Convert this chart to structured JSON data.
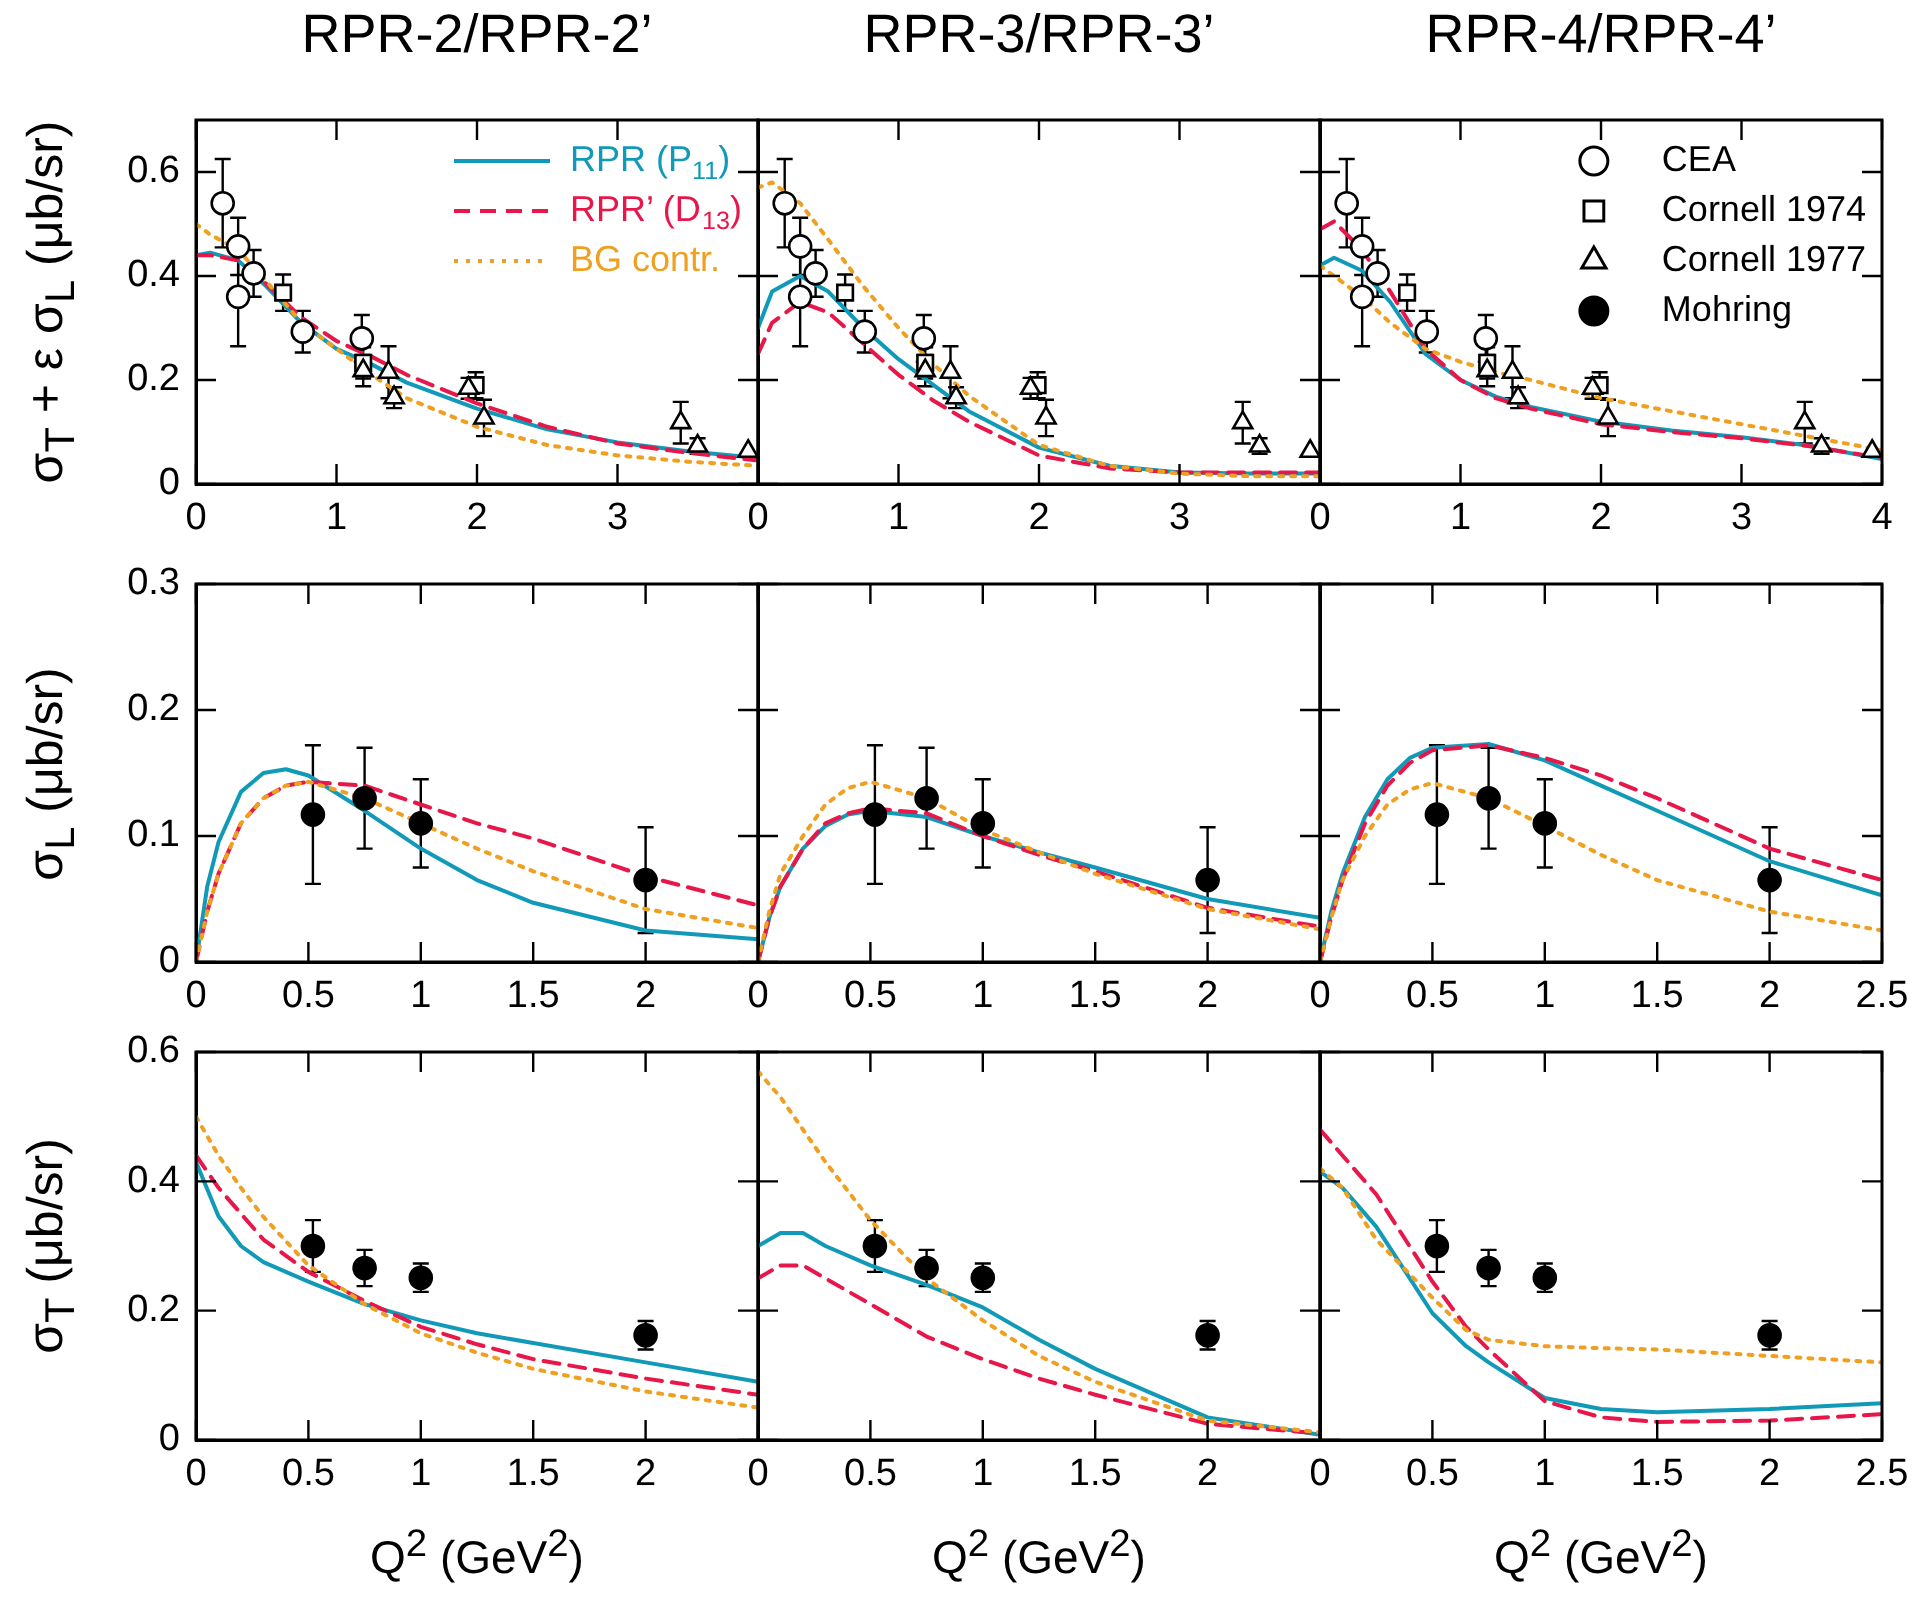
{
  "chart_data": [
    {
      "type": "line",
      "title": "RPR-2/RPR-2’",
      "ylabel": "σ$_{T}$ + ε σ$_{L}$ (μb/sr)",
      "xlim": [
        0,
        4
      ],
      "ylim": [
        0,
        0.7
      ],
      "xticks": [
        0,
        1,
        2,
        3
      ],
      "yticks": [
        0,
        0.2,
        0.4,
        0.6
      ],
      "legend": "top right",
      "series": [
        {
          "type": "line",
          "name": "RPR (P$_{11}$)",
          "color": "#1199b8",
          "line_style": "solid",
          "marker": "none",
          "x": [
            0,
            0.1,
            0.3,
            0.5,
            0.75,
            1,
            1.25,
            1.5,
            2,
            2.5,
            3,
            3.5,
            4
          ],
          "values": [
            0.44,
            0.445,
            0.43,
            0.38,
            0.31,
            0.26,
            0.23,
            0.195,
            0.145,
            0.105,
            0.08,
            0.063,
            0.05
          ]
        },
        {
          "type": "line",
          "name": "RPR’ (D$_{13}$)",
          "color": "#e8174a",
          "line_style": "dashed",
          "marker": "none",
          "x": [
            0,
            0.1,
            0.3,
            0.5,
            0.75,
            1,
            1.25,
            1.5,
            2,
            2.5,
            3,
            3.5,
            4
          ],
          "values": [
            0.44,
            0.44,
            0.43,
            0.385,
            0.32,
            0.275,
            0.245,
            0.21,
            0.155,
            0.11,
            0.078,
            0.06,
            0.045
          ]
        },
        {
          "type": "line",
          "name": "BG contr.",
          "color": "#f0a020",
          "line_style": "dotted",
          "marker": "none",
          "x": [
            0,
            0.1,
            0.3,
            0.5,
            0.75,
            1,
            1.25,
            1.5,
            2,
            2.5,
            3,
            3.5,
            4
          ],
          "values": [
            0.5,
            0.48,
            0.45,
            0.39,
            0.31,
            0.26,
            0.21,
            0.165,
            0.11,
            0.075,
            0.055,
            0.043,
            0.035
          ]
        },
        {
          "type": "scatter",
          "color": "#ffffff",
          "marker": "circle",
          "x": [
            0.19,
            0.3,
            0.3,
            0.41,
            0.76,
            1.18
          ],
          "values": [
            0.54,
            0.457,
            0.36,
            0.405,
            0.293,
            0.28
          ],
          "errors": [
            0.085,
            0.055,
            0.095,
            0.045,
            0.04,
            0.045
          ]
        },
        {
          "type": "scatter",
          "color": "#ffffff",
          "marker": "square",
          "x": [
            0.62,
            1.19,
            1.99
          ],
          "values": [
            0.368,
            0.233,
            0.19
          ],
          "errors": [
            0.035,
            0.03,
            0.025
          ]
        },
        {
          "type": "scatter",
          "color": "#ffffff",
          "marker": "triangle",
          "x": [
            1.19,
            1.37,
            1.41,
            1.94,
            2.05,
            3.45,
            3.57,
            3.93
          ],
          "values": [
            0.218,
            0.215,
            0.166,
            0.184,
            0.127,
            0.118,
            0.073,
            0.063
          ],
          "errors": [
            0.03,
            0.05,
            0.02,
            0.02,
            0.035,
            0.04,
            0.015,
            null
          ]
        }
      ]
    },
    {
      "type": "line",
      "title": "RPR-3/RPR-3’",
      "xlim": [
        0,
        4
      ],
      "ylim": [
        0,
        0.7
      ],
      "xticks": [
        0,
        1,
        2,
        3
      ],
      "yticks": [
        0,
        0.2,
        0.4,
        0.6
      ],
      "tick_labels": "x",
      "series": [
        {
          "type": "line",
          "color": "#1199b8",
          "line_style": "solid",
          "marker": "none",
          "x": [
            0,
            0.1,
            0.3,
            0.5,
            0.75,
            1,
            1.25,
            1.5,
            2,
            2.5,
            3,
            3.5,
            4
          ],
          "values": [
            0.3,
            0.37,
            0.4,
            0.37,
            0.3,
            0.24,
            0.19,
            0.14,
            0.07,
            0.035,
            0.022,
            0.02,
            0.02
          ]
        },
        {
          "type": "line",
          "color": "#e8174a",
          "line_style": "dashed",
          "marker": "none",
          "x": [
            0,
            0.1,
            0.3,
            0.5,
            0.75,
            1,
            1.25,
            1.5,
            2,
            2.5,
            3,
            3.5,
            4
          ],
          "values": [
            0.25,
            0.31,
            0.35,
            0.33,
            0.27,
            0.21,
            0.16,
            0.12,
            0.055,
            0.03,
            0.022,
            0.022,
            0.022
          ]
        },
        {
          "type": "line",
          "color": "#f0a020",
          "line_style": "dotted",
          "marker": "none",
          "x": [
            0,
            0.1,
            0.3,
            0.5,
            0.75,
            1,
            1.25,
            1.5,
            2,
            2.5,
            3,
            3.5,
            4
          ],
          "values": [
            0.57,
            0.58,
            0.54,
            0.47,
            0.38,
            0.3,
            0.23,
            0.17,
            0.075,
            0.035,
            0.02,
            0.015,
            0.015
          ]
        },
        {
          "type": "scatter",
          "color": "#ffffff",
          "marker": "circle",
          "x": [
            0.19,
            0.3,
            0.3,
            0.41,
            0.76,
            1.18
          ],
          "values": [
            0.54,
            0.457,
            0.36,
            0.405,
            0.293,
            0.28
          ],
          "errors": [
            0.085,
            0.055,
            0.095,
            0.045,
            0.04,
            0.045
          ]
        },
        {
          "type": "scatter",
          "color": "#ffffff",
          "marker": "square",
          "x": [
            0.62,
            1.19,
            1.99
          ],
          "values": [
            0.368,
            0.233,
            0.19
          ],
          "errors": [
            0.035,
            0.03,
            0.025
          ]
        },
        {
          "type": "scatter",
          "color": "#ffffff",
          "marker": "triangle",
          "x": [
            1.19,
            1.37,
            1.41,
            1.94,
            2.05,
            3.45,
            3.57,
            3.93
          ],
          "values": [
            0.218,
            0.215,
            0.166,
            0.184,
            0.127,
            0.118,
            0.073,
            0.063
          ],
          "errors": [
            0.03,
            0.05,
            0.02,
            0.02,
            0.035,
            0.04,
            0.015,
            null
          ]
        }
      ]
    },
    {
      "type": "line",
      "title": "RPR-4/RPR-4’",
      "xlim": [
        0,
        4
      ],
      "ylim": [
        0,
        0.7
      ],
      "xticks": [
        0,
        1,
        2,
        3,
        4
      ],
      "yticks": [
        0,
        0.2,
        0.4,
        0.6
      ],
      "tick_labels": "x",
      "legend": "top right",
      "series": [
        {
          "type": "line",
          "color": "#1199b8",
          "line_style": "solid",
          "marker": "none",
          "x": [
            0,
            0.1,
            0.3,
            0.5,
            0.75,
            1,
            1.25,
            1.5,
            2,
            2.5,
            3,
            3.5,
            4
          ],
          "values": [
            0.42,
            0.435,
            0.41,
            0.35,
            0.25,
            0.2,
            0.168,
            0.148,
            0.12,
            0.103,
            0.09,
            0.073,
            0.048
          ]
        },
        {
          "type": "line",
          "color": "#e8174a",
          "line_style": "dashed",
          "marker": "none",
          "x": [
            0,
            0.1,
            0.3,
            0.5,
            0.75,
            1,
            1.25,
            1.5,
            2,
            2.5,
            3,
            3.5,
            4
          ],
          "values": [
            0.49,
            0.505,
            0.45,
            0.37,
            0.26,
            0.2,
            0.165,
            0.145,
            0.115,
            0.1,
            0.088,
            0.072,
            0.05
          ]
        },
        {
          "type": "line",
          "color": "#f0a020",
          "line_style": "dotted",
          "marker": "none",
          "x": [
            0,
            0.1,
            0.3,
            0.5,
            0.75,
            1,
            1.25,
            1.5,
            2,
            2.5,
            3,
            3.5,
            4
          ],
          "values": [
            0.42,
            0.4,
            0.36,
            0.31,
            0.26,
            0.235,
            0.215,
            0.2,
            0.165,
            0.14,
            0.115,
            0.09,
            0.065
          ]
        },
        {
          "type": "scatter",
          "name": "CEA",
          "color": "#ffffff",
          "marker": "circle",
          "x": [
            0.19,
            0.3,
            0.3,
            0.41,
            0.76,
            1.18
          ],
          "values": [
            0.54,
            0.457,
            0.36,
            0.405,
            0.293,
            0.28
          ],
          "errors": [
            0.085,
            0.055,
            0.095,
            0.045,
            0.04,
            0.045
          ]
        },
        {
          "type": "scatter",
          "name": "Cornell 1974",
          "color": "#ffffff",
          "marker": "square",
          "x": [
            0.62,
            1.19,
            1.99
          ],
          "values": [
            0.368,
            0.233,
            0.19
          ],
          "errors": [
            0.035,
            0.03,
            0.025
          ]
        },
        {
          "type": "scatter",
          "name": "Cornell 1977",
          "color": "#ffffff",
          "marker": "triangle",
          "x": [
            1.19,
            1.37,
            1.41,
            1.94,
            2.05,
            3.45,
            3.57,
            3.93
          ],
          "values": [
            0.218,
            0.215,
            0.166,
            0.184,
            0.127,
            0.118,
            0.073,
            0.063
          ],
          "errors": [
            0.03,
            0.05,
            0.02,
            0.02,
            0.035,
            0.04,
            0.015,
            null
          ]
        },
        {
          "type": "scatter",
          "name": "Mohring",
          "color": "#000000",
          "marker": "circle"
        }
      ]
    },
    {
      "type": "line",
      "ylabel": "σ$_{L}$ (μb/sr)",
      "xlim": [
        0,
        2.5
      ],
      "ylim": [
        0,
        0.3
      ],
      "xticks": [
        0,
        0.5,
        1,
        1.5,
        2
      ],
      "yticks": [
        0,
        0.1,
        0.2,
        0.3
      ],
      "series": [
        {
          "type": "line",
          "color": "#1199b8",
          "line_style": "solid",
          "marker": "none",
          "x": [
            0,
            0.05,
            0.1,
            0.2,
            0.3,
            0.4,
            0.5,
            0.75,
            1,
            1.25,
            1.5,
            2,
            2.5
          ],
          "values": [
            0,
            0.06,
            0.095,
            0.135,
            0.15,
            0.153,
            0.148,
            0.12,
            0.09,
            0.065,
            0.047,
            0.025,
            0.018
          ]
        },
        {
          "type": "line",
          "color": "#e8174a",
          "line_style": "dashed",
          "marker": "none",
          "x": [
            0,
            0.05,
            0.1,
            0.2,
            0.3,
            0.4,
            0.5,
            0.75,
            1,
            1.25,
            1.5,
            2,
            2.5
          ],
          "values": [
            0,
            0.04,
            0.07,
            0.11,
            0.13,
            0.14,
            0.143,
            0.14,
            0.125,
            0.11,
            0.098,
            0.068,
            0.045
          ]
        },
        {
          "type": "line",
          "color": "#f0a020",
          "line_style": "dotted",
          "marker": "none",
          "x": [
            0,
            0.05,
            0.1,
            0.2,
            0.3,
            0.4,
            0.5,
            0.75,
            1,
            1.25,
            1.5,
            2,
            2.5
          ],
          "values": [
            0,
            0.04,
            0.07,
            0.11,
            0.13,
            0.14,
            0.143,
            0.13,
            0.11,
            0.09,
            0.072,
            0.042,
            0.027
          ]
        },
        {
          "type": "scatter",
          "color": "#000000",
          "marker": "circle",
          "x": [
            0.52,
            0.75,
            1,
            2
          ],
          "values": [
            0.117,
            0.13,
            0.11,
            0.065
          ],
          "errors": [
            0.055,
            0.04,
            0.035,
            0.042
          ]
        }
      ]
    },
    {
      "type": "line",
      "xlim": [
        0,
        2.5
      ],
      "ylim": [
        0,
        0.3
      ],
      "xticks": [
        0,
        0.5,
        1,
        1.5,
        2
      ],
      "yticks": [
        0,
        0.1,
        0.2,
        0.3
      ],
      "tick_labels": "x",
      "series": [
        {
          "type": "line",
          "color": "#1199b8",
          "line_style": "solid",
          "marker": "none",
          "x": [
            0,
            0.05,
            0.1,
            0.2,
            0.3,
            0.4,
            0.5,
            0.75,
            1,
            1.25,
            1.5,
            2,
            2.5
          ],
          "values": [
            0,
            0.035,
            0.06,
            0.09,
            0.108,
            0.117,
            0.12,
            0.115,
            0.1,
            0.087,
            0.075,
            0.05,
            0.035
          ]
        },
        {
          "type": "line",
          "color": "#e8174a",
          "line_style": "dashed",
          "marker": "none",
          "x": [
            0,
            0.05,
            0.1,
            0.2,
            0.3,
            0.4,
            0.5,
            0.75,
            1,
            1.25,
            1.5,
            2,
            2.5
          ],
          "values": [
            0,
            0.035,
            0.06,
            0.09,
            0.11,
            0.118,
            0.122,
            0.118,
            0.1,
            0.085,
            0.072,
            0.043,
            0.028
          ]
        },
        {
          "type": "line",
          "color": "#f0a020",
          "line_style": "dotted",
          "marker": "none",
          "x": [
            0,
            0.05,
            0.1,
            0.2,
            0.3,
            0.4,
            0.5,
            0.75,
            1,
            1.25,
            1.5,
            2,
            2.5
          ],
          "values": [
            0,
            0.04,
            0.07,
            0.1,
            0.125,
            0.138,
            0.143,
            0.13,
            0.105,
            0.087,
            0.07,
            0.042,
            0.026
          ]
        },
        {
          "type": "scatter",
          "color": "#000000",
          "marker": "circle",
          "x": [
            0.52,
            0.75,
            1,
            2
          ],
          "values": [
            0.117,
            0.13,
            0.11,
            0.065
          ],
          "errors": [
            0.055,
            0.04,
            0.035,
            0.042
          ]
        }
      ]
    },
    {
      "type": "line",
      "xlim": [
        0,
        2.5
      ],
      "ylim": [
        0,
        0.3
      ],
      "xticks": [
        0,
        0.5,
        1,
        1.5,
        2,
        2.5
      ],
      "yticks": [
        0,
        0.1,
        0.2,
        0.3
      ],
      "tick_labels": "x",
      "series": [
        {
          "type": "line",
          "color": "#1199b8",
          "line_style": "solid",
          "marker": "none",
          "x": [
            0,
            0.05,
            0.1,
            0.2,
            0.3,
            0.4,
            0.5,
            0.75,
            1,
            1.25,
            1.5,
            2,
            2.5
          ],
          "values": [
            0,
            0.04,
            0.07,
            0.115,
            0.145,
            0.162,
            0.17,
            0.173,
            0.16,
            0.14,
            0.12,
            0.08,
            0.053
          ]
        },
        {
          "type": "line",
          "color": "#e8174a",
          "line_style": "dashed",
          "marker": "none",
          "x": [
            0,
            0.05,
            0.1,
            0.2,
            0.3,
            0.4,
            0.5,
            0.75,
            1,
            1.25,
            1.5,
            2,
            2.5
          ],
          "values": [
            0,
            0.035,
            0.065,
            0.11,
            0.14,
            0.158,
            0.168,
            0.172,
            0.162,
            0.148,
            0.13,
            0.09,
            0.065
          ]
        },
        {
          "type": "line",
          "color": "#f0a020",
          "line_style": "dotted",
          "marker": "none",
          "x": [
            0,
            0.05,
            0.1,
            0.2,
            0.3,
            0.4,
            0.5,
            0.75,
            1,
            1.25,
            1.5,
            2,
            2.5
          ],
          "values": [
            0,
            0.035,
            0.065,
            0.1,
            0.125,
            0.137,
            0.142,
            0.13,
            0.108,
            0.085,
            0.065,
            0.04,
            0.025
          ]
        },
        {
          "type": "scatter",
          "color": "#000000",
          "marker": "circle",
          "x": [
            0.52,
            0.75,
            1,
            2
          ],
          "values": [
            0.117,
            0.13,
            0.11,
            0.065
          ],
          "errors": [
            0.055,
            0.04,
            0.035,
            0.042
          ]
        }
      ]
    },
    {
      "type": "line",
      "xlabel": "Q$^{2}$ (GeV$^{2}$)",
      "ylabel": "σ$_{T}$ (μb/sr)",
      "xlim": [
        0,
        2.5
      ],
      "ylim": [
        0,
        0.6
      ],
      "xticks": [
        0,
        0.5,
        1,
        1.5,
        2
      ],
      "yticks": [
        0,
        0.2,
        0.4,
        0.6
      ],
      "series": [
        {
          "type": "line",
          "color": "#1199b8",
          "line_style": "solid",
          "marker": "none",
          "x": [
            0,
            0.1,
            0.2,
            0.3,
            0.5,
            0.75,
            1,
            1.25,
            1.5,
            2,
            2.5
          ],
          "values": [
            0.43,
            0.346,
            0.3,
            0.275,
            0.245,
            0.21,
            0.185,
            0.165,
            0.15,
            0.12,
            0.09
          ]
        },
        {
          "type": "line",
          "color": "#e8174a",
          "line_style": "dashed",
          "marker": "none",
          "x": [
            0,
            0.1,
            0.2,
            0.3,
            0.5,
            0.75,
            1,
            1.25,
            1.5,
            2,
            2.5
          ],
          "values": [
            0.44,
            0.39,
            0.35,
            0.31,
            0.26,
            0.215,
            0.175,
            0.148,
            0.125,
            0.095,
            0.07
          ]
        },
        {
          "type": "line",
          "color": "#f0a020",
          "line_style": "dotted",
          "marker": "none",
          "x": [
            0,
            0.1,
            0.2,
            0.3,
            0.5,
            0.75,
            1,
            1.25,
            1.5,
            2,
            2.5
          ],
          "values": [
            0.5,
            0.44,
            0.39,
            0.345,
            0.27,
            0.21,
            0.165,
            0.135,
            0.11,
            0.075,
            0.05
          ]
        },
        {
          "type": "scatter",
          "color": "#000000",
          "marker": "circle",
          "x": [
            0.52,
            0.75,
            1,
            2
          ],
          "values": [
            0.3,
            0.266,
            0.251,
            0.162
          ],
          "errors": [
            0.04,
            0.028,
            0.022,
            0.022
          ]
        }
      ]
    },
    {
      "type": "line",
      "xlabel": "Q$^{2}$ (GeV$^{2}$)",
      "xlim": [
        0,
        2.5
      ],
      "ylim": [
        0,
        0.6
      ],
      "xticks": [
        0,
        0.5,
        1,
        1.5,
        2
      ],
      "yticks": [
        0,
        0.2,
        0.4,
        0.6
      ],
      "tick_labels": "x",
      "series": [
        {
          "type": "line",
          "color": "#1199b8",
          "line_style": "solid",
          "marker": "none",
          "x": [
            0,
            0.1,
            0.2,
            0.3,
            0.5,
            0.75,
            1,
            1.25,
            1.5,
            2,
            2.5
          ],
          "values": [
            0.3,
            0.32,
            0.32,
            0.3,
            0.27,
            0.24,
            0.205,
            0.155,
            0.11,
            0.035,
            0.008
          ]
        },
        {
          "type": "line",
          "color": "#e8174a",
          "line_style": "dashed",
          "marker": "none",
          "x": [
            0,
            0.1,
            0.2,
            0.3,
            0.5,
            0.75,
            1,
            1.25,
            1.5,
            2,
            2.5
          ],
          "values": [
            0.25,
            0.27,
            0.27,
            0.25,
            0.21,
            0.16,
            0.125,
            0.095,
            0.07,
            0.025,
            0.01
          ]
        },
        {
          "type": "line",
          "color": "#f0a020",
          "line_style": "dotted",
          "marker": "none",
          "x": [
            0,
            0.1,
            0.2,
            0.3,
            0.5,
            0.75,
            1,
            1.25,
            1.5,
            2,
            2.5
          ],
          "values": [
            0.57,
            0.53,
            0.48,
            0.43,
            0.34,
            0.25,
            0.185,
            0.13,
            0.09,
            0.03,
            0.012
          ]
        },
        {
          "type": "scatter",
          "color": "#000000",
          "marker": "circle",
          "x": [
            0.52,
            0.75,
            1,
            2
          ],
          "values": [
            0.3,
            0.266,
            0.251,
            0.162
          ],
          "errors": [
            0.04,
            0.028,
            0.022,
            0.022
          ]
        }
      ]
    },
    {
      "type": "line",
      "xlabel": "Q$^{2}$ (GeV$^{2}$)",
      "xlim": [
        0,
        2.5
      ],
      "ylim": [
        0,
        0.6
      ],
      "xticks": [
        0,
        0.5,
        1,
        1.5,
        2,
        2.5
      ],
      "yticks": [
        0,
        0.2,
        0.4,
        0.6
      ],
      "tick_labels": "x",
      "series": [
        {
          "type": "line",
          "color": "#1199b8",
          "line_style": "solid",
          "marker": "none",
          "x": [
            0,
            0.1,
            0.25,
            0.5,
            0.65,
            0.75,
            1,
            1.25,
            1.5,
            2,
            2.5
          ],
          "values": [
            0.415,
            0.39,
            0.33,
            0.196,
            0.145,
            0.12,
            0.065,
            0.048,
            0.043,
            0.048,
            0.057
          ]
        },
        {
          "type": "line",
          "color": "#e8174a",
          "line_style": "dashed",
          "marker": "none",
          "x": [
            0,
            0.1,
            0.25,
            0.5,
            0.65,
            0.75,
            1,
            1.25,
            1.5,
            2,
            2.5
          ],
          "values": [
            0.48,
            0.44,
            0.38,
            0.245,
            0.175,
            0.14,
            0.06,
            0.035,
            0.028,
            0.03,
            0.04
          ]
        },
        {
          "type": "line",
          "color": "#f0a020",
          "line_style": "dotted",
          "marker": "none",
          "x": [
            0,
            0.1,
            0.25,
            0.5,
            0.65,
            0.75,
            1,
            1.25,
            1.5,
            2,
            2.5
          ],
          "values": [
            0.42,
            0.39,
            0.31,
            0.22,
            0.17,
            0.155,
            0.145,
            0.142,
            0.14,
            0.13,
            0.12
          ]
        },
        {
          "type": "scatter",
          "color": "#000000",
          "marker": "circle",
          "x": [
            0.52,
            0.75,
            1,
            2
          ],
          "values": [
            0.3,
            0.266,
            0.251,
            0.162
          ],
          "errors": [
            0.04,
            0.028,
            0.022,
            0.022
          ]
        }
      ]
    }
  ]
}
